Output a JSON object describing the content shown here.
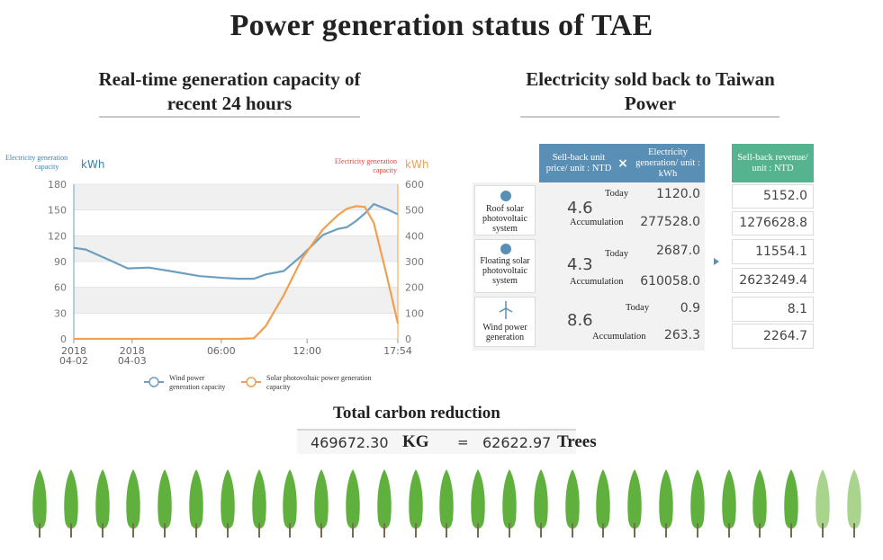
{
  "title": "Power generation status of TAE",
  "left_section": {
    "title_line1": "Real-time generation capacity of",
    "title_line2": "recent 24 hours"
  },
  "right_section": {
    "title_line1": "Electricity sold back to Taiwan",
    "title_line2": "Power"
  },
  "chart_data": {
    "type": "line",
    "x_ticks": [
      "2018 04-02",
      "2018 04-03",
      "06:00",
      "12:00",
      "17:54"
    ],
    "left_axis": {
      "label": "Electricity generation capacity",
      "unit": "kWh",
      "ticks": [
        0,
        30,
        60,
        90,
        120,
        150,
        180
      ],
      "range": [
        0,
        180
      ],
      "color": "#3d7fa8"
    },
    "right_axis": {
      "label": "Electricity generation capacity",
      "unit": "kWh",
      "ticks": [
        0,
        100,
        200,
        300,
        400,
        500,
        600
      ],
      "range": [
        0,
        600
      ],
      "color": "#e0413a"
    },
    "grid": true,
    "legend_position": "bottom",
    "series": [
      {
        "name": "Wind power generation capacity",
        "axis": "left",
        "color": "#6d9fc0",
        "points": [
          [
            0,
            106
          ],
          [
            0.04,
            104
          ],
          [
            0.13,
            90
          ],
          [
            0.18,
            82
          ],
          [
            0.25,
            83
          ],
          [
            0.32,
            79
          ],
          [
            0.42,
            73
          ],
          [
            0.5,
            71
          ],
          [
            0.55,
            70
          ],
          [
            0.6,
            70
          ],
          [
            0.64,
            75
          ],
          [
            0.7,
            79
          ],
          [
            0.76,
            97
          ],
          [
            0.83,
            121
          ],
          [
            0.88,
            128
          ],
          [
            0.91,
            130
          ],
          [
            0.94,
            137
          ],
          [
            0.97,
            146
          ],
          [
            1.0,
            157
          ],
          [
            1.05,
            150
          ],
          [
            1.08,
            145
          ]
        ]
      },
      {
        "name": "Solar photovoltaic power generation capacity",
        "axis": "right",
        "color": "#f0a050",
        "points": [
          [
            0,
            0
          ],
          [
            0.55,
            0
          ],
          [
            0.6,
            2
          ],
          [
            0.64,
            50
          ],
          [
            0.7,
            170
          ],
          [
            0.76,
            310
          ],
          [
            0.83,
            425
          ],
          [
            0.88,
            480
          ],
          [
            0.91,
            505
          ],
          [
            0.94,
            515
          ],
          [
            0.97,
            512
          ],
          [
            1.0,
            450
          ],
          [
            1.04,
            260
          ],
          [
            1.08,
            60
          ]
        ]
      }
    ]
  },
  "table": {
    "headers": {
      "price": "Sell-back unit price/ unit : NTD",
      "multiply": "×",
      "generation": "Electricity generation/ unit : kWh",
      "revenue": "Sell-back revenue/ unit : NTD"
    },
    "today_label": "Today",
    "accum_label": "Accumulation",
    "rows": [
      {
        "name": "Roof solar photovoltaic system",
        "price": "4.6",
        "today_gen": "1120.0",
        "accum_gen": "277528.0",
        "today_rev": "5152.0",
        "accum_rev": "1276628.8"
      },
      {
        "name": "Floating solar photovoltaic system",
        "price": "4.3",
        "today_gen": "2687.0",
        "accum_gen": "610058.0",
        "today_rev": "11554.1",
        "accum_rev": "2623249.4"
      },
      {
        "name": "Wind power generation",
        "price": "8.6",
        "today_gen": "0.9",
        "accum_gen": "263.3",
        "today_rev": "8.1",
        "accum_rev": "2264.7"
      }
    ]
  },
  "carbon": {
    "title": "Total carbon reduction",
    "kg_value": "469672.30",
    "kg_unit": "KG",
    "equals": "=",
    "trees_value": "62622.97",
    "trees_unit": "Trees",
    "tree_count_full": 25,
    "tree_count_faded": 2,
    "tree_color": "#5fb03c",
    "tree_faded_color": "#a8d48e"
  }
}
